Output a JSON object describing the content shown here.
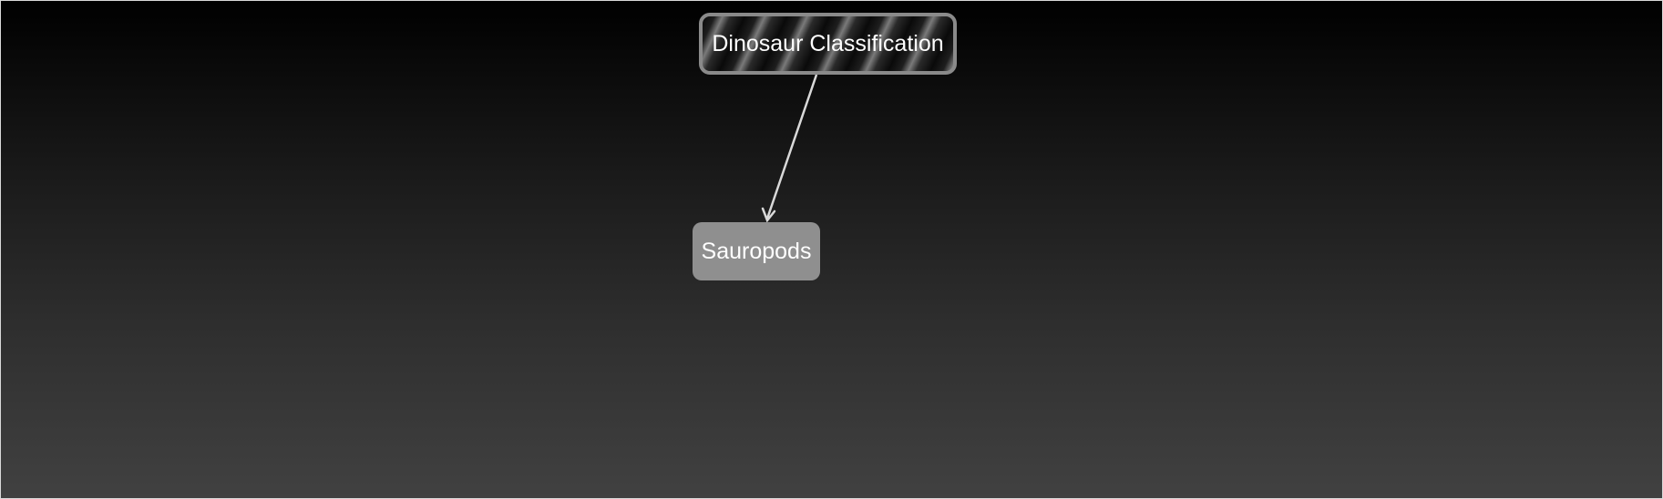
{
  "diagram": {
    "root": {
      "label": "Dinosaur Classification"
    },
    "children": [
      {
        "label": "Sauropods"
      }
    ],
    "edges": [
      {
        "from": "Dinosaur Classification",
        "to": "Sauropods"
      }
    ],
    "colors": {
      "background_top": "#000000",
      "background_bottom": "#414141",
      "root_border": "#8a8a8a",
      "child_fill": "#8f8f8f",
      "edge": "#d9d9d9",
      "text": "#ffffff"
    }
  }
}
